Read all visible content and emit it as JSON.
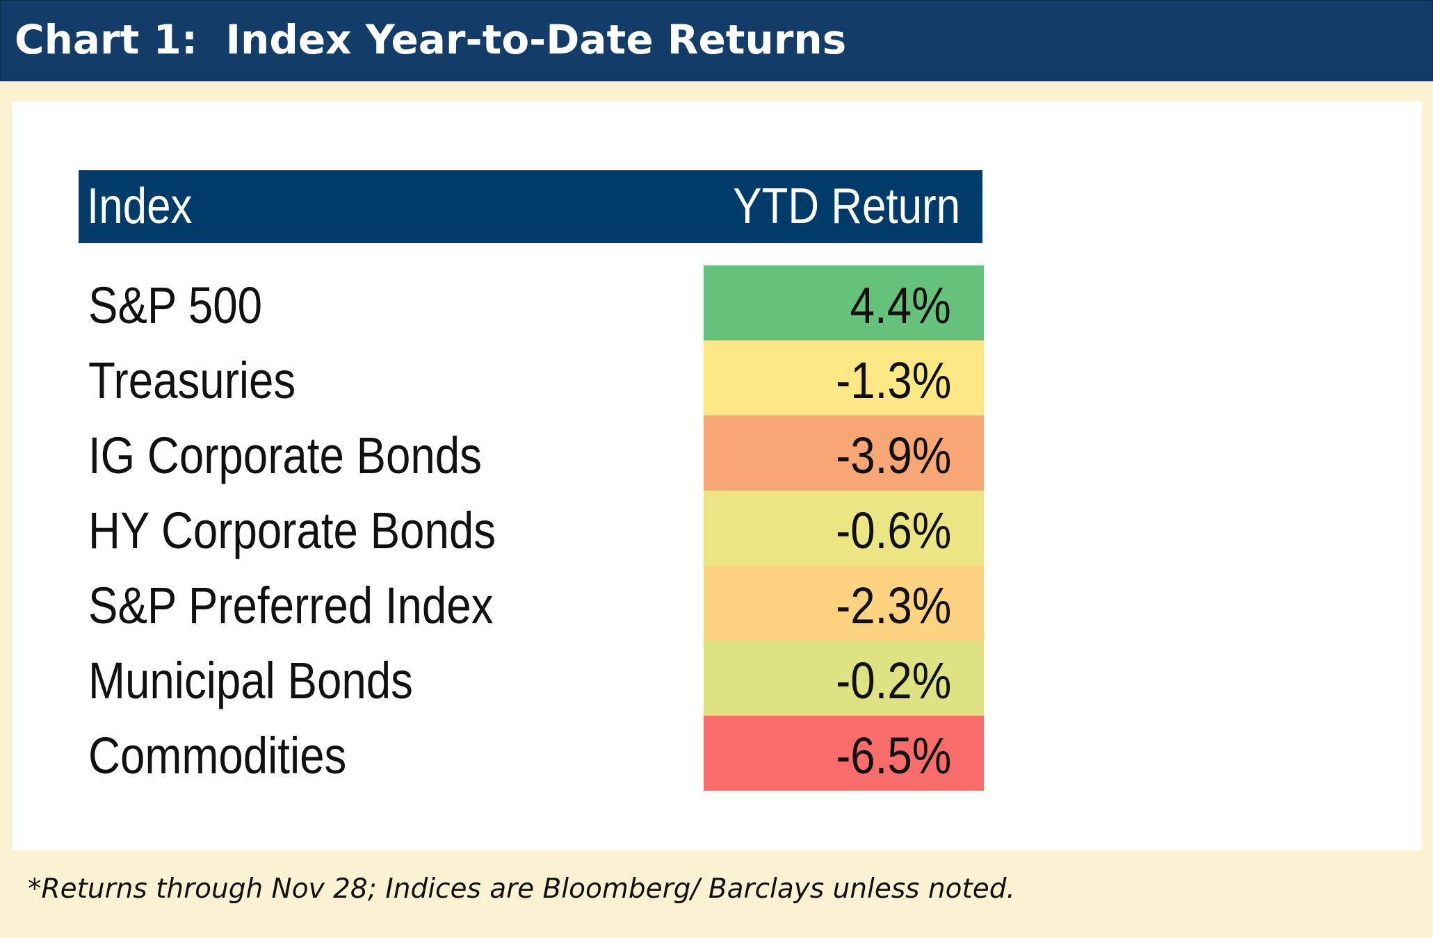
{
  "title": "Chart 1:  Index Year-to-Date Returns",
  "footnote": "*Returns through Nov 28; Indices are Bloomberg/ Barclays unless noted.",
  "colors": {
    "title_bar": "#143c69",
    "header": "#003b6a",
    "background": "#fdf1d4"
  },
  "chart_data": {
    "type": "table",
    "title": "Chart 1:  Index Year-to-Date Returns",
    "columns": [
      "Index",
      "YTD Return"
    ],
    "rows": [
      {
        "label": "S&P 500",
        "display": "4.4%",
        "value": 4.4,
        "color": "#66c17b"
      },
      {
        "label": "Treasuries",
        "display": "-1.3%",
        "value": -1.3,
        "color": "#fde885"
      },
      {
        "label": "IG Corporate Bonds",
        "display": "-3.9%",
        "value": -3.9,
        "color": "#f9a677"
      },
      {
        "label": "HY Corporate Bonds",
        "display": "-0.6%",
        "value": -0.6,
        "color": "#ece583"
      },
      {
        "label": "S&P Preferred Index",
        "display": "-2.3%",
        "value": -2.3,
        "color": "#fdd280"
      },
      {
        "label": "Municipal Bonds",
        "display": "-0.2%",
        "value": -0.2,
        "color": "#dfe282"
      },
      {
        "label": "Commodities",
        "display": "-6.5%",
        "value": -6.5,
        "color": "#f96c6c"
      }
    ]
  }
}
